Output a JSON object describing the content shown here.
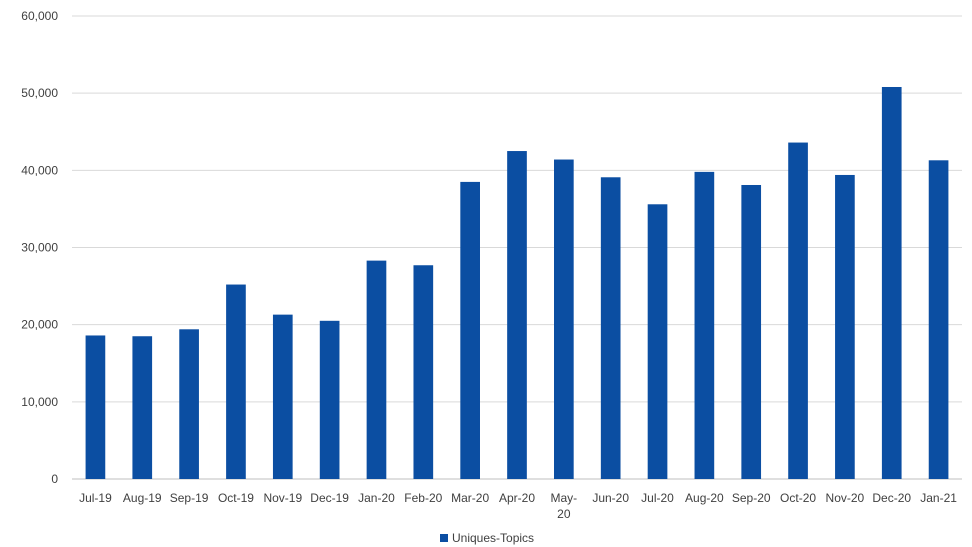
{
  "chart_data": {
    "type": "bar",
    "title": "",
    "xlabel": "",
    "ylabel": "",
    "categories": [
      "Jul-19",
      "Aug-19",
      "Sep-19",
      "Oct-19",
      "Nov-19",
      "Dec-19",
      "Jan-20",
      "Feb-20",
      "Mar-20",
      "Apr-20",
      "May-20",
      "Jun-20",
      "Jul-20",
      "Aug-20",
      "Sep-20",
      "Oct-20",
      "Nov-20",
      "Dec-20",
      "Jan-21"
    ],
    "series": [
      {
        "name": "Uniques-Topics",
        "color": "#0b4ea2",
        "values": [
          18600,
          18500,
          19400,
          25200,
          21300,
          20500,
          28300,
          27700,
          38500,
          42500,
          41400,
          39100,
          35600,
          39800,
          38100,
          43600,
          39400,
          50800,
          41300
        ]
      }
    ],
    "ylim": [
      0,
      60000
    ],
    "yticks": [
      0,
      10000,
      20000,
      30000,
      40000,
      50000,
      60000
    ],
    "ytick_labels": [
      "0",
      "10,000",
      "20,000",
      "30,000",
      "40,000",
      "50,000",
      "60,000"
    ],
    "grid": true,
    "legend": "bottom-center"
  }
}
